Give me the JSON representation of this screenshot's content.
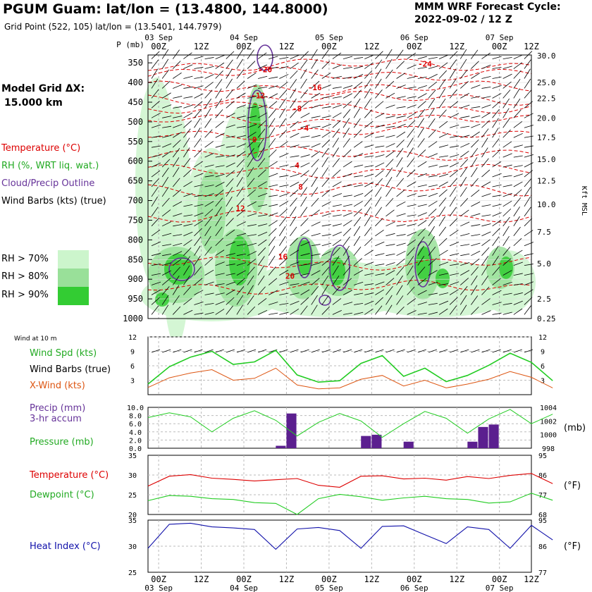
{
  "header": {
    "title": "PGUM Guam:  lat/lon = (13.4800, 144.8000)",
    "grid_point": "Grid Point (522, 105) lat/lon = (13.5401, 144.7979)",
    "cycle_label": "MMM WRF Forecast Cycle:",
    "cycle_value": "2022-09-02 / 12  Z",
    "model_grid_label": "Model Grid ΔX:",
    "model_grid_value": "15.000 km"
  },
  "legend": {
    "temperature": "Temperature (°C)",
    "rh": "RH (%, WRT liq. wat.)",
    "cloud": "Cloud/Precip Outline",
    "barbs": "Wind Barbs (kts) (true)",
    "rh70": "RH > 70%",
    "rh80": "RH > 80%",
    "rh90": "RH > 90%",
    "wind10": "Wind at 10 m",
    "wspd": "Wind Spd (kts)",
    "wbarbs": "Wind Barbs (true)",
    "xwind": "X-Wind (kts)",
    "precip": "Precip (mm)",
    "precip2": "3-hr accum",
    "pressure": "Pressure (mb)",
    "temp2": "Temperature (°C)",
    "dewpoint": "Dewpoint (°C)",
    "heat": "Heat Index (°C)",
    "mb_unit": "(mb)",
    "f_unit": "(°F)"
  },
  "colors": {
    "temperature": "#dd0000",
    "rh": "#22bb22",
    "cloud": "#663399",
    "xwind": "#dd5511",
    "heat": "#1111aa",
    "rh70": "#ccf5cc",
    "rh80": "#99e099",
    "rh90": "#33cc33",
    "precip_bar": "#5b1f8f"
  },
  "chart_data": [
    {
      "type": "heatmap",
      "name": "sounding-cross-section",
      "x_ticks_top": [
        "00Z",
        "12Z",
        "00Z",
        "12Z",
        "00Z",
        "12Z",
        "00Z",
        "12Z",
        "00Z",
        "12Z"
      ],
      "date_labels": [
        "03 Sep",
        "04 Sep",
        "05 Sep",
        "06 Sep",
        "07 Sep"
      ],
      "ylabel": "P (mb)",
      "p_levels": [
        350,
        400,
        450,
        500,
        550,
        600,
        650,
        700,
        750,
        800,
        850,
        900,
        950,
        1000
      ],
      "ylabel_right": "Kft MSL",
      "kft_ticks": [
        "30.0",
        "25.0",
        "22.5",
        "20.0",
        "17.5",
        "15.0",
        "12.5",
        "10.0",
        "7.5",
        "5.0",
        "2.5",
        "0.25"
      ],
      "kft_p": [
        332,
        400,
        440,
        490,
        540,
        595,
        650,
        710,
        780,
        860,
        950,
        1000
      ],
      "isotherm_labels": [
        {
          "t": "-24",
          "hour": 87,
          "p": 352
        },
        {
          "t": "-20",
          "hour": 42,
          "p": 367
        },
        {
          "t": "-16",
          "hour": 56,
          "p": 412
        },
        {
          "t": "-12",
          "hour": 40,
          "p": 433
        },
        {
          "t": "-8",
          "hour": 51,
          "p": 466
        },
        {
          "t": "-4",
          "hour": 53,
          "p": 515
        },
        {
          "t": "0",
          "hour": 39,
          "p": 545
        },
        {
          "t": "4",
          "hour": 51,
          "p": 610
        },
        {
          "t": "8",
          "hour": 52,
          "p": 665
        },
        {
          "t": "12",
          "hour": 35,
          "p": 720
        },
        {
          "t": "16",
          "hour": 47,
          "p": 842
        },
        {
          "t": "20",
          "hour": 49,
          "p": 892
        }
      ],
      "isotherm_p_at_start": [
        355,
        378,
        414,
        440,
        466,
        497,
        528,
        580,
        626,
        672,
        740,
        860,
        920
      ]
    },
    {
      "type": "line",
      "name": "wind-10m",
      "ylim": [
        0,
        12
      ],
      "y_ticks": [
        3,
        6,
        9,
        12
      ],
      "x_hours": [
        0,
        6,
        12,
        18,
        24,
        30,
        36,
        42,
        48,
        54,
        60,
        66,
        72,
        78,
        84,
        90,
        96,
        102,
        108,
        114
      ],
      "series": [
        {
          "name": "Wind Spd (kts)",
          "values": [
            2.2,
            5.8,
            7.8,
            9.0,
            6.3,
            6.8,
            9.2,
            4.1,
            2.6,
            2.9,
            6.5,
            8.1,
            3.8,
            5.5,
            2.7,
            4.0,
            6.1,
            8.6,
            6.7,
            2.9
          ]
        },
        {
          "name": "X-Wind (kts)",
          "values": [
            1.5,
            3.5,
            4.5,
            5.2,
            3.0,
            3.4,
            5.5,
            2.0,
            1.2,
            1.4,
            3.2,
            4.0,
            1.8,
            3.0,
            1.4,
            2.2,
            3.2,
            4.8,
            3.6,
            1.4
          ]
        }
      ]
    },
    {
      "type": "bar",
      "name": "precip-pressure",
      "precip_ylim": [
        0,
        10
      ],
      "precip_ticks": [
        "0.0",
        "2.0",
        "4.0",
        "6.0",
        "8.0",
        "10.0"
      ],
      "pressure_ticks": [
        "998",
        "1000",
        "1002",
        "1004"
      ],
      "pressure_ylim": [
        998,
        1004
      ],
      "precip_bars": [
        {
          "hour": 36,
          "mm": 0.6
        },
        {
          "hour": 39,
          "mm": 8.5
        },
        {
          "hour": 60,
          "mm": 3.0
        },
        {
          "hour": 63,
          "mm": 3.3
        },
        {
          "hour": 72,
          "mm": 1.6
        },
        {
          "hour": 90,
          "mm": 1.6
        },
        {
          "hour": 93,
          "mm": 5.2
        },
        {
          "hour": 96,
          "mm": 5.8
        }
      ],
      "pressure_hours": [
        0,
        6,
        12,
        18,
        24,
        30,
        36,
        42,
        48,
        54,
        60,
        66,
        72,
        78,
        84,
        90,
        96,
        102,
        108,
        114
      ],
      "pressure_values": [
        1002.5,
        1003.2,
        1002.6,
        1000.4,
        1002.4,
        1003.5,
        1002.1,
        999.8,
        1001.8,
        1003.1,
        1002.0,
        999.6,
        1001.6,
        1003.4,
        1002.4,
        1000.2,
        1002.3,
        1003.7,
        1001.6,
        1003.0
      ]
    },
    {
      "type": "line",
      "name": "temp-dewpoint",
      "ylim_c": [
        20,
        35
      ],
      "ticks_c": [
        20,
        25,
        30,
        35
      ],
      "ticks_f": [
        68,
        77,
        86,
        95
      ],
      "x_hours": [
        0,
        6,
        12,
        18,
        24,
        30,
        36,
        42,
        48,
        54,
        60,
        66,
        72,
        78,
        84,
        90,
        96,
        102,
        108,
        114
      ],
      "series": [
        {
          "name": "Temperature",
          "values": [
            27.2,
            29.7,
            30.1,
            29.2,
            28.9,
            28.5,
            28.8,
            29.1,
            27.4,
            26.9,
            29.7,
            29.8,
            29.0,
            29.2,
            28.7,
            29.6,
            29.1,
            29.9,
            30.4,
            27.8
          ]
        },
        {
          "name": "Dewpoint",
          "values": [
            23.5,
            24.8,
            24.6,
            24.0,
            23.8,
            23.0,
            22.8,
            20.0,
            24.0,
            25.1,
            24.5,
            23.6,
            24.2,
            24.6,
            24.0,
            23.8,
            22.9,
            23.2,
            25.4,
            23.6
          ]
        }
      ]
    },
    {
      "type": "line",
      "name": "heat-index",
      "ylim_c": [
        25,
        35
      ],
      "ticks_c": [
        25,
        30,
        35
      ],
      "ticks_f": [
        77,
        86,
        95
      ],
      "x_hours": [
        0,
        6,
        12,
        18,
        24,
        30,
        36,
        42,
        48,
        54,
        60,
        66,
        72,
        78,
        84,
        90,
        96,
        102,
        108,
        114
      ],
      "series": [
        {
          "name": "Heat Index",
          "values": [
            29.6,
            34.2,
            34.4,
            33.7,
            33.5,
            33.2,
            29.4,
            33.3,
            33.6,
            33.0,
            29.6,
            33.8,
            33.9,
            32.2,
            30.5,
            33.7,
            33.2,
            29.6,
            34.0,
            31.2
          ]
        }
      ]
    }
  ]
}
